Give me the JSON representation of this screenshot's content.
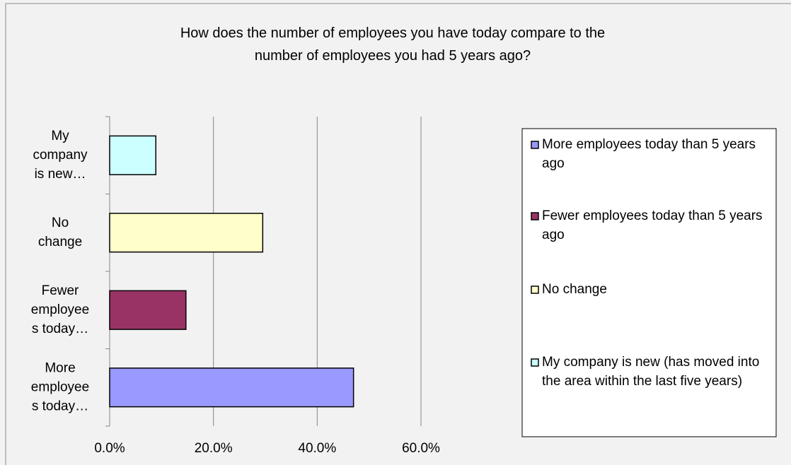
{
  "chart_data": {
    "type": "bar",
    "orientation": "horizontal",
    "title": "How does the number of employees you have today compare to the number of employees you had 5 years ago?",
    "categories": [
      "More\nemployee\ns today…",
      "Fewer\nemployee\ns today…",
      "No\nchange",
      "My\ncompany\nis new…"
    ],
    "series": [
      {
        "name": "More employees today than 5 years ago",
        "color": "#9999ff",
        "values": [
          47.0,
          null,
          null,
          null
        ]
      },
      {
        "name": "Fewer employees today than 5 years ago",
        "color": "#993366",
        "values": [
          null,
          14.7,
          null,
          null
        ]
      },
      {
        "name": "No change",
        "color": "#ffffcc",
        "values": [
          null,
          null,
          29.5,
          null
        ]
      },
      {
        "name": "My company is new (has moved into the area within the last five years)",
        "color": "#ccffff",
        "values": [
          null,
          null,
          null,
          8.9
        ]
      }
    ],
    "xlim": [
      0,
      60
    ],
    "xticks": [
      {
        "value": 0,
        "label": "0.0%"
      },
      {
        "value": 20,
        "label": "20.0%"
      },
      {
        "value": 40,
        "label": "40.0%"
      },
      {
        "value": 60,
        "label": "60.0%"
      }
    ],
    "grid": true,
    "legend": "right"
  }
}
